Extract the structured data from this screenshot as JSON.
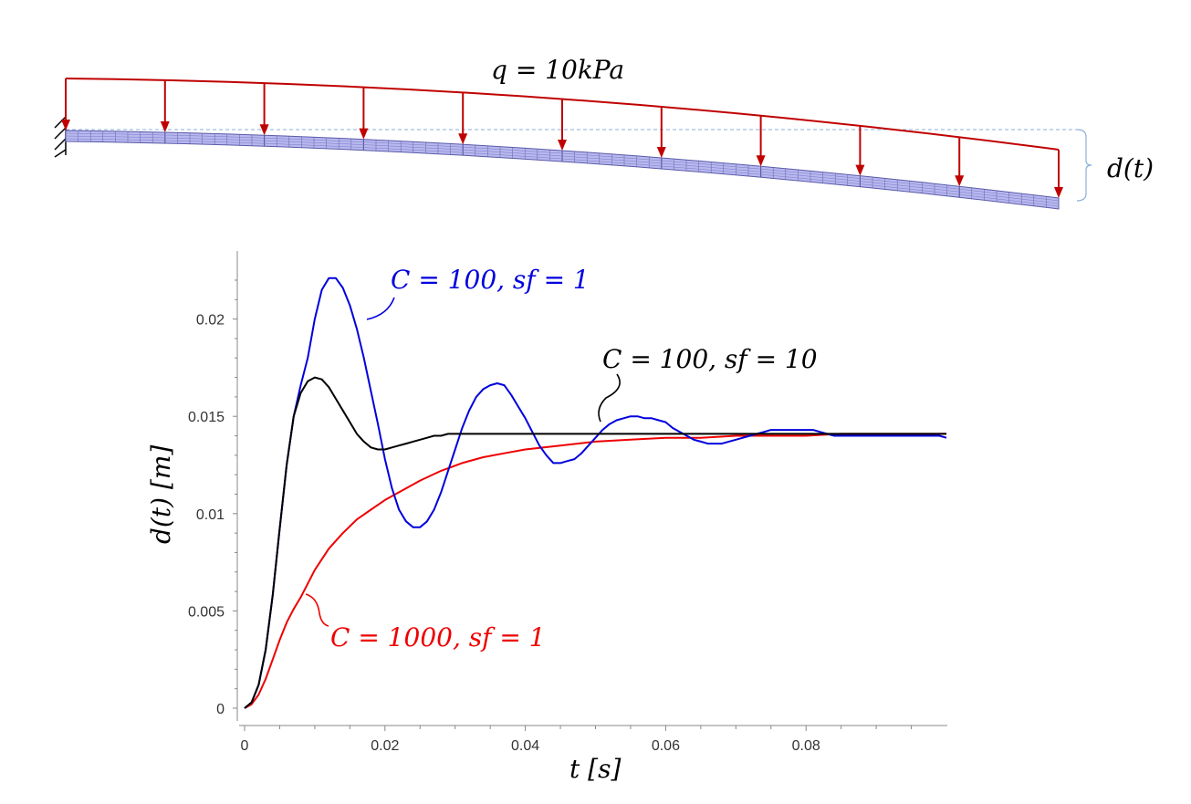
{
  "beam": {
    "load_label": "q = 10kPa",
    "deflection_label": "d(t)"
  },
  "colors": {
    "load": "#c00000",
    "beam_fill": "#b8b8f0",
    "beam_line": "#5a5aa8",
    "ref_line": "#8ab0d8",
    "series_blue": "#0000dd",
    "series_black": "#000000",
    "series_red": "#ee0000"
  },
  "chart_data": {
    "type": "line",
    "title": "",
    "xlabel": "t [s]",
    "ylabel": "d(t)  [m]",
    "xlim": [
      0,
      0.1
    ],
    "ylim": [
      0,
      0.0235
    ],
    "xticks": [
      0,
      0.02,
      0.04,
      0.06,
      0.08
    ],
    "xtick_labels": [
      "0",
      "0.02",
      "0.04",
      "0.06",
      "0.08"
    ],
    "yticks": [
      0,
      0.005,
      0.01,
      0.015,
      0.02
    ],
    "ytick_labels": [
      "0",
      "0.005",
      "0.01",
      "0.015",
      "0.02"
    ],
    "grid": false,
    "series": [
      {
        "name": "C = 100, sf = 1",
        "color": "#0000dd",
        "x": [
          0,
          0.001,
          0.002,
          0.003,
          0.004,
          0.005,
          0.006,
          0.007,
          0.008,
          0.009,
          0.01,
          0.011,
          0.012,
          0.013,
          0.014,
          0.015,
          0.016,
          0.017,
          0.018,
          0.019,
          0.02,
          0.021,
          0.022,
          0.023,
          0.024,
          0.025,
          0.026,
          0.027,
          0.028,
          0.029,
          0.03,
          0.031,
          0.032,
          0.033,
          0.034,
          0.035,
          0.036,
          0.037,
          0.038,
          0.039,
          0.04,
          0.041,
          0.042,
          0.043,
          0.044,
          0.045,
          0.046,
          0.047,
          0.048,
          0.049,
          0.05,
          0.051,
          0.052,
          0.053,
          0.054,
          0.055,
          0.056,
          0.057,
          0.058,
          0.059,
          0.06,
          0.061,
          0.062,
          0.063,
          0.064,
          0.065,
          0.066,
          0.067,
          0.068,
          0.069,
          0.07,
          0.071,
          0.072,
          0.073,
          0.074,
          0.075,
          0.076,
          0.077,
          0.078,
          0.079,
          0.08,
          0.081,
          0.082,
          0.083,
          0.084,
          0.085,
          0.086,
          0.087,
          0.088,
          0.089,
          0.09,
          0.091,
          0.092,
          0.093,
          0.094,
          0.095,
          0.096,
          0.097,
          0.098,
          0.099,
          0.1
        ],
        "y": [
          0,
          0.0003,
          0.0012,
          0.003,
          0.0058,
          0.0092,
          0.0125,
          0.015,
          0.0166,
          0.018,
          0.02,
          0.0215,
          0.0221,
          0.0221,
          0.0216,
          0.0207,
          0.0195,
          0.018,
          0.0163,
          0.0146,
          0.0128,
          0.0113,
          0.0102,
          0.0096,
          0.0093,
          0.0093,
          0.0096,
          0.0102,
          0.0111,
          0.0122,
          0.0133,
          0.0144,
          0.0153,
          0.016,
          0.0164,
          0.0166,
          0.0167,
          0.0166,
          0.0161,
          0.0155,
          0.0149,
          0.0142,
          0.0135,
          0.013,
          0.0126,
          0.0126,
          0.0127,
          0.0128,
          0.0131,
          0.0135,
          0.0139,
          0.0143,
          0.0146,
          0.0148,
          0.0149,
          0.015,
          0.015,
          0.0149,
          0.0149,
          0.0148,
          0.0147,
          0.0144,
          0.0142,
          0.014,
          0.0138,
          0.0137,
          0.0136,
          0.0136,
          0.0136,
          0.0137,
          0.0138,
          0.0139,
          0.014,
          0.0141,
          0.0142,
          0.0143,
          0.0143,
          0.0143,
          0.0143,
          0.0143,
          0.0143,
          0.0143,
          0.0142,
          0.0141,
          0.014,
          0.014,
          0.014,
          0.014,
          0.014,
          0.014,
          0.014,
          0.014,
          0.014,
          0.014,
          0.014,
          0.014,
          0.014,
          0.014,
          0.014,
          0.014,
          0.0139
        ]
      },
      {
        "name": "C = 100, sf = 10",
        "color": "#000000",
        "x": [
          0,
          0.001,
          0.002,
          0.003,
          0.004,
          0.005,
          0.006,
          0.007,
          0.008,
          0.009,
          0.01,
          0.011,
          0.012,
          0.013,
          0.014,
          0.015,
          0.016,
          0.017,
          0.018,
          0.019,
          0.02,
          0.021,
          0.022,
          0.023,
          0.024,
          0.025,
          0.026,
          0.027,
          0.028,
          0.029,
          0.03,
          0.032,
          0.034,
          0.036,
          0.04,
          0.045,
          0.05,
          0.055,
          0.06,
          0.065,
          0.07,
          0.075,
          0.08,
          0.085,
          0.09,
          0.095,
          0.1
        ],
        "y": [
          0,
          0.0003,
          0.0012,
          0.003,
          0.0058,
          0.0092,
          0.0125,
          0.015,
          0.0162,
          0.0168,
          0.017,
          0.0169,
          0.0165,
          0.0159,
          0.0153,
          0.0147,
          0.0141,
          0.0137,
          0.0134,
          0.0133,
          0.0133,
          0.0134,
          0.0135,
          0.0136,
          0.0137,
          0.0138,
          0.0139,
          0.014,
          0.014,
          0.0141,
          0.0141,
          0.0141,
          0.0141,
          0.0141,
          0.0141,
          0.0141,
          0.0141,
          0.0141,
          0.0141,
          0.0141,
          0.0141,
          0.0141,
          0.0141,
          0.0141,
          0.0141,
          0.0141,
          0.0141
        ]
      },
      {
        "name": "C = 1000, sf = 1",
        "color": "#ee0000",
        "x": [
          0,
          0.001,
          0.002,
          0.003,
          0.004,
          0.005,
          0.006,
          0.007,
          0.008,
          0.009,
          0.01,
          0.012,
          0.014,
          0.016,
          0.018,
          0.02,
          0.022,
          0.025,
          0.028,
          0.031,
          0.034,
          0.037,
          0.04,
          0.045,
          0.05,
          0.055,
          0.06,
          0.065,
          0.07,
          0.075,
          0.08,
          0.085,
          0.09,
          0.095,
          0.1
        ],
        "y": [
          0,
          0.0002,
          0.0007,
          0.0015,
          0.0025,
          0.0035,
          0.0044,
          0.0051,
          0.0057,
          0.0064,
          0.0071,
          0.0082,
          0.009,
          0.0097,
          0.0102,
          0.0107,
          0.0111,
          0.0117,
          0.0122,
          0.0126,
          0.0129,
          0.0131,
          0.0133,
          0.0135,
          0.0137,
          0.0138,
          0.0139,
          0.0139,
          0.014,
          0.014,
          0.014,
          0.0141,
          0.0141,
          0.0141,
          0.0141
        ]
      }
    ]
  }
}
